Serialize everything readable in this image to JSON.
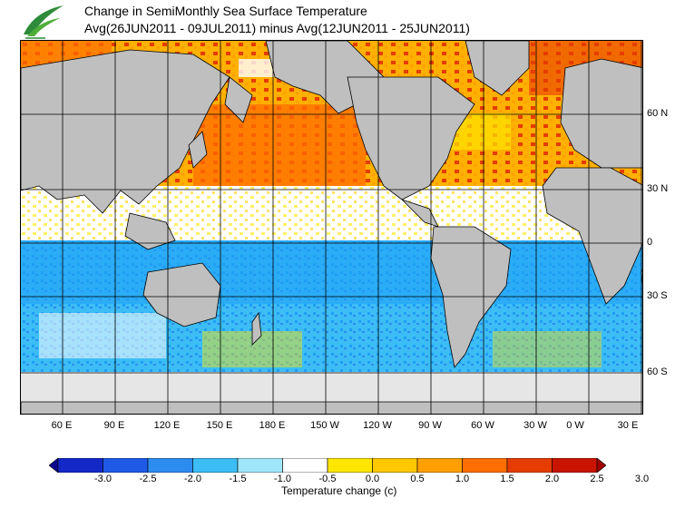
{
  "title_line1": "Change in SemiMonthly Sea Surface Temperature",
  "title_line2": "Avg(26JUN2011 - 09JUL2011) minus Avg(12JUN2011 - 25JUN2011)",
  "lon_labels": [
    "60 E",
    "90 E",
    "120 E",
    "150 E",
    "180 E",
    "150 W",
    "120 W",
    "90 W",
    "60 W",
    "30 W",
    "0 W",
    "30 E"
  ],
  "lat_labels": [
    "60 N",
    "30 N",
    "0",
    "30 S",
    "60 S"
  ],
  "colorbar": {
    "title": "Temperature change  (c)",
    "tick_labels": [
      "-3.0",
      "-2.5",
      "-2.0",
      "-1.5",
      "-1.0",
      "-0.5",
      "0.0",
      "0.5",
      "1.0",
      "1.5",
      "2.0",
      "2.5",
      "3.0"
    ],
    "colors": [
      "#0c0a8c",
      "#1428c8",
      "#1e5ae6",
      "#2d8cf0",
      "#3cbdf5",
      "#a0e6fa",
      "#ffffff",
      "#ffe600",
      "#ffc800",
      "#ffa000",
      "#ff6e00",
      "#e63c00",
      "#c81400",
      "#a00000"
    ]
  },
  "legend_colors": {
    "land": "#bfbfbf",
    "ice": "#e6e6e6",
    "ocean_neutral": "#ffffff",
    "cool_light": "#3cbdf5",
    "cool_mid": "#1e9ff5",
    "cool_dark": "#1e5ae6",
    "warm_yellow": "#ffe600",
    "warm_orange": "#ffa000",
    "warm_red": "#ff6e00"
  }
}
